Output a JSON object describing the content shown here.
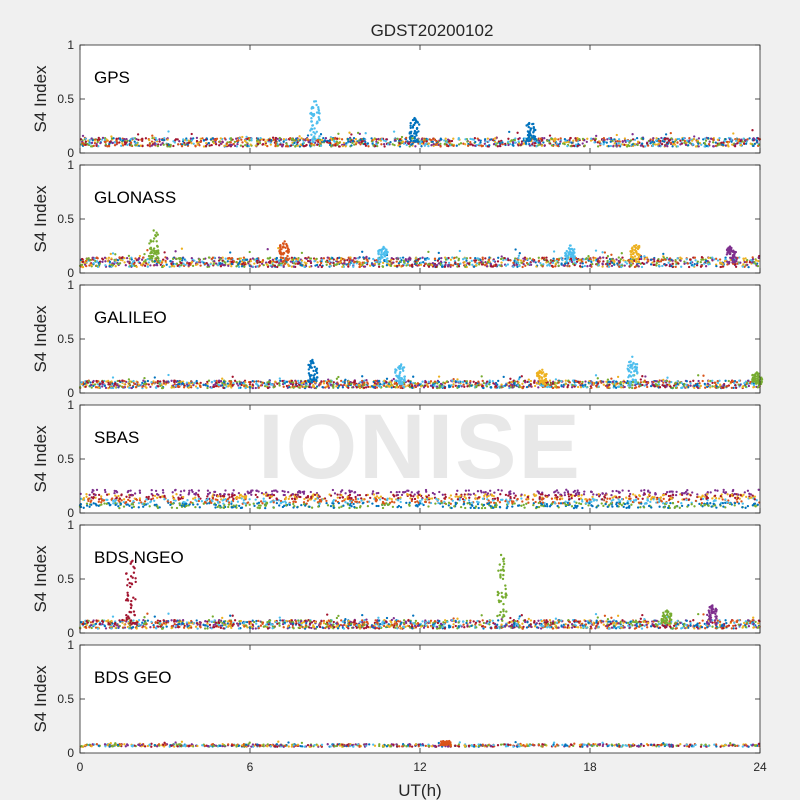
{
  "figure": {
    "title": "GDST20200102",
    "xlabel": "UT(h)",
    "watermark": "IONISE"
  },
  "chart_data": {
    "type": "scatter",
    "title": "GDST20200102",
    "xlabel": "UT(h)",
    "ylabel": "S4 Index",
    "xlim": [
      0,
      24
    ],
    "xticks": [
      0,
      6,
      12,
      18,
      24
    ],
    "ylim": [
      0,
      1
    ],
    "yticks": [
      0,
      0.5,
      1
    ],
    "ytick_labels": [
      "0",
      "0.5",
      "1"
    ],
    "grid": false,
    "colors": [
      "#0072bd",
      "#d95319",
      "#edb120",
      "#7e2f8e",
      "#77ac30",
      "#4dbeee",
      "#a2142f"
    ],
    "panels": [
      {
        "label": "GPS",
        "baseline": 0.1,
        "spread": 0.04,
        "spikes": [
          {
            "x": 8.3,
            "peak": 0.5,
            "color": 5
          },
          {
            "x": 11.8,
            "peak": 0.33,
            "color": 0
          },
          {
            "x": 15.9,
            "peak": 0.3,
            "color": 0
          }
        ]
      },
      {
        "label": "GLONASS",
        "baseline": 0.1,
        "spread": 0.045,
        "spikes": [
          {
            "x": 2.6,
            "peak": 0.43,
            "color": 4
          },
          {
            "x": 7.2,
            "peak": 0.3,
            "color": 1
          },
          {
            "x": 10.7,
            "peak": 0.25,
            "color": 5
          },
          {
            "x": 17.3,
            "peak": 0.26,
            "color": 5
          },
          {
            "x": 19.6,
            "peak": 0.29,
            "color": 2
          },
          {
            "x": 23.0,
            "peak": 0.26,
            "color": 3
          }
        ]
      },
      {
        "label": "GALILEO",
        "baseline": 0.08,
        "spread": 0.035,
        "spikes": [
          {
            "x": 8.2,
            "peak": 0.32,
            "color": 0
          },
          {
            "x": 11.3,
            "peak": 0.28,
            "color": 5
          },
          {
            "x": 16.3,
            "peak": 0.22,
            "color": 2
          },
          {
            "x": 19.5,
            "peak": 0.34,
            "color": 5
          },
          {
            "x": 23.9,
            "peak": 0.2,
            "color": 4
          }
        ]
      },
      {
        "label": "SBAS",
        "baseline": 0.14,
        "spread": 0.05,
        "banded": true,
        "spikes": []
      },
      {
        "label": "BDS NGEO",
        "baseline": 0.08,
        "spread": 0.04,
        "spikes": [
          {
            "x": 1.8,
            "peak": 0.73,
            "color": 6
          },
          {
            "x": 14.9,
            "peak": 0.77,
            "color": 4
          },
          {
            "x": 20.7,
            "peak": 0.22,
            "color": 4
          },
          {
            "x": 22.3,
            "peak": 0.28,
            "color": 3
          }
        ]
      },
      {
        "label": "BDS GEO",
        "baseline": 0.07,
        "spread": 0.012,
        "flat": true,
        "spikes": [
          {
            "x": 12.9,
            "peak": 0.12,
            "color": 1
          }
        ]
      }
    ]
  }
}
